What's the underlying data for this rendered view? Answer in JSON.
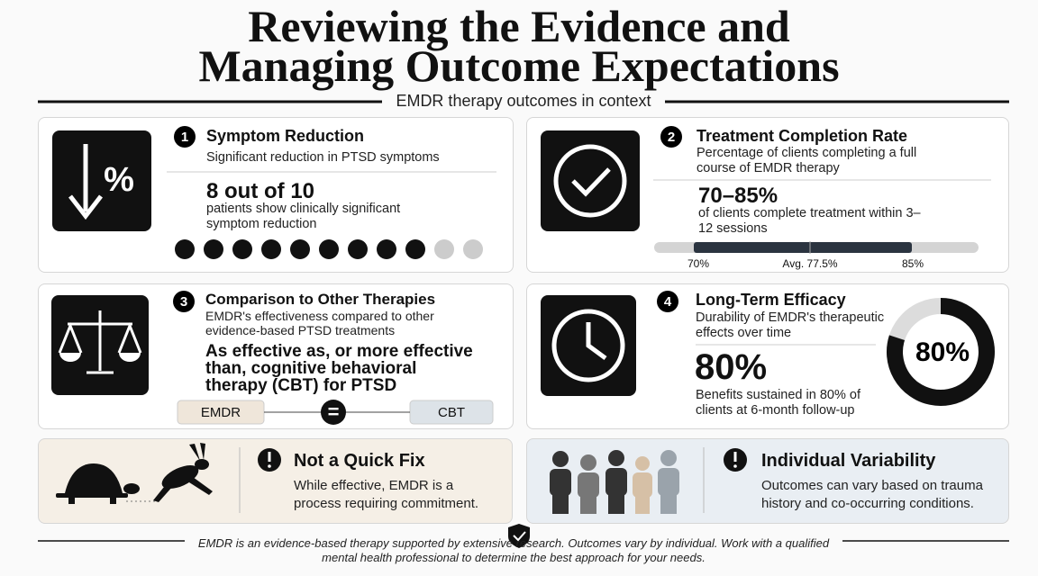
{
  "header": {
    "title_line1": "Reviewing the Evidence and",
    "title_line2": "Managing Outcome Expectations",
    "subtitle": "EMDR therapy outcomes in context"
  },
  "cards": [
    {
      "number": "1",
      "title": "Symptom Reduction",
      "description": "Significant reduction in PTSD symptoms",
      "stat": "8 out of 10",
      "detail": "patients show clinically significant symptom reduction"
    },
    {
      "number": "2",
      "title": "Treatment Completion Rate",
      "description": "Percentage of clients completing a full course of EMDR therapy",
      "stat": "70–85%",
      "detail": "of clients complete treatment within 3–12 sessions",
      "bar_labels": [
        "70%",
        "Avg. 77.5%",
        "85%"
      ]
    },
    {
      "number": "3",
      "title": "Comparison to Other Therapies",
      "description": "EMDR's effectiveness compared to other evidence-based PTSD treatments",
      "stat": "As effective as, or more effective than, cognitive behavioral therapy (CBT) for PTSD",
      "compare": [
        "EMDR",
        "=",
        "CBT"
      ]
    },
    {
      "number": "4",
      "title": "Long-Term Efficacy",
      "description": "Durability of EMDR's therapeutic effects over time",
      "stat": "80%",
      "detail": "Benefits sustained in 80% of clients at 6-month follow-up",
      "donut_label": "80%"
    }
  ],
  "notes": [
    {
      "title": "Not a Quick Fix",
      "text": "While effective, EMDR is a process requiring commitment."
    },
    {
      "title": "Individual Variability",
      "text": "Outcomes can vary based on trauma history and co-occurring conditions."
    }
  ],
  "footer": {
    "text": "EMDR is an evidence-based therapy supported by extensive research. Outcomes vary by individual. Work with a qualified mental health professional to determine the best approach for your needs."
  }
}
